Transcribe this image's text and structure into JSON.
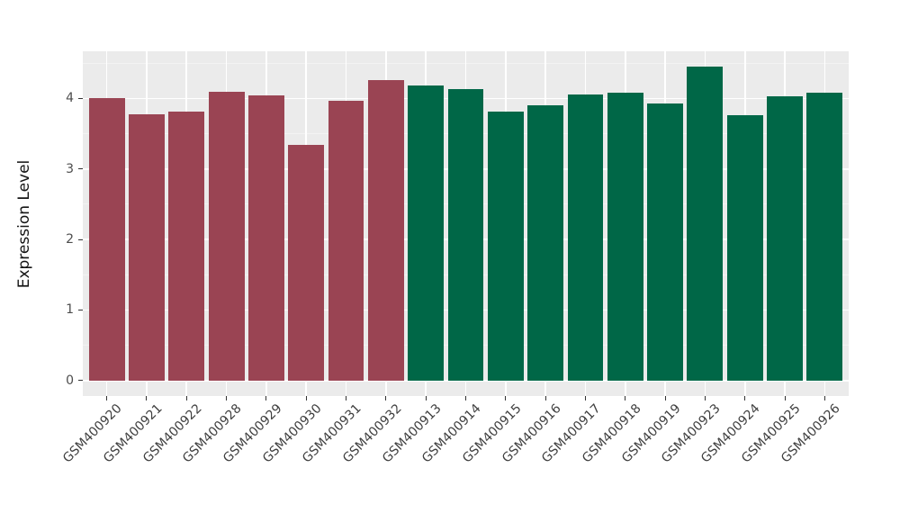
{
  "chart_data": {
    "type": "bar",
    "title": "",
    "xlabel": "",
    "ylabel": "Expression Level",
    "ylim": [
      -0.22,
      4.67
    ],
    "yticks": [
      0,
      1,
      2,
      3,
      4
    ],
    "yticks_minor": [
      0.5,
      1.5,
      2.5,
      3.5,
      4.5
    ],
    "grid": "major-white-minor-faint",
    "legend_position": "none",
    "bar_width_fraction": 0.9,
    "colors": {
      "group1": "#9A4453",
      "group2": "#006747"
    },
    "bars": [
      {
        "label": "GSM400920",
        "value": 4.0,
        "group": "group1"
      },
      {
        "label": "GSM400921",
        "value": 3.77,
        "group": "group1"
      },
      {
        "label": "GSM400922",
        "value": 3.82,
        "group": "group1"
      },
      {
        "label": "GSM400928",
        "value": 4.1,
        "group": "group1"
      },
      {
        "label": "GSM400929",
        "value": 4.05,
        "group": "group1"
      },
      {
        "label": "GSM400930",
        "value": 3.34,
        "group": "group1"
      },
      {
        "label": "GSM400931",
        "value": 3.97,
        "group": "group1"
      },
      {
        "label": "GSM400932",
        "value": 4.26,
        "group": "group1"
      },
      {
        "label": "GSM400913",
        "value": 4.18,
        "group": "group2"
      },
      {
        "label": "GSM400914",
        "value": 4.13,
        "group": "group2"
      },
      {
        "label": "GSM400915",
        "value": 3.81,
        "group": "group2"
      },
      {
        "label": "GSM400916",
        "value": 3.9,
        "group": "group2"
      },
      {
        "label": "GSM400917",
        "value": 4.06,
        "group": "group2"
      },
      {
        "label": "GSM400918",
        "value": 4.08,
        "group": "group2"
      },
      {
        "label": "GSM400919",
        "value": 3.93,
        "group": "group2"
      },
      {
        "label": "GSM400923",
        "value": 4.45,
        "group": "group2"
      },
      {
        "label": "GSM400924",
        "value": 3.76,
        "group": "group2"
      },
      {
        "label": "GSM400925",
        "value": 4.03,
        "group": "group2"
      },
      {
        "label": "GSM400926",
        "value": 4.08,
        "group": "group2"
      }
    ]
  },
  "style": {
    "panel_bg": "#EBEBEB",
    "grid_major": "#FFFFFF",
    "grid_minor": "#F3F3F3",
    "tick_color": "#333333",
    "text_color": "#4D4D4D",
    "axis_title_color": "#141414"
  }
}
